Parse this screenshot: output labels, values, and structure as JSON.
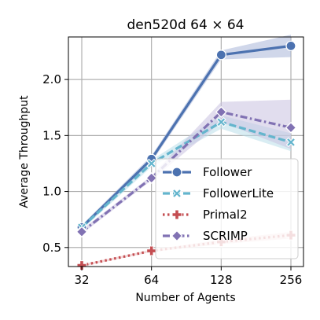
{
  "chart_data": {
    "type": "line",
    "title": "den520d 64 × 64",
    "xlabel": "Number of Agents",
    "ylabel": "Average Throughput",
    "x": [
      32,
      64,
      128,
      256
    ],
    "x_tick_labels": [
      "32",
      "64",
      "128",
      "256"
    ],
    "x_scale": "log2",
    "y_ticks": [
      0.5,
      1.0,
      1.5,
      2.0
    ],
    "y_tick_labels": [
      "0.5",
      "1.0",
      "1.5",
      "2.0"
    ],
    "ylim": [
      0.33,
      2.38
    ],
    "grid": true,
    "legend_position": "center-right",
    "series": [
      {
        "name": "Follower",
        "values": [
          0.68,
          1.29,
          2.22,
          2.3
        ],
        "band_low": [
          0.66,
          1.26,
          2.18,
          2.2
        ],
        "band_high": [
          0.7,
          1.32,
          2.26,
          2.4
        ],
        "color": "#4c72b0",
        "band_color": "#aab6d9",
        "dash": "solid",
        "marker": "circle"
      },
      {
        "name": "FollowerLite",
        "values": [
          0.68,
          1.25,
          1.62,
          1.44
        ],
        "band_low": [
          0.66,
          1.22,
          1.56,
          1.36
        ],
        "band_high": [
          0.7,
          1.28,
          1.68,
          1.52
        ],
        "color": "#64b5cd",
        "band_color": "#b9dfe9",
        "dash": "dashed",
        "marker": "x"
      },
      {
        "name": "Primal2",
        "values": [
          0.34,
          0.47,
          0.55,
          0.61
        ],
        "band_low": [
          0.33,
          0.46,
          0.53,
          0.58
        ],
        "band_high": [
          0.35,
          0.48,
          0.57,
          0.64
        ],
        "color": "#c44e52",
        "band_color": "#eab8b9",
        "dash": "dotted",
        "marker": "plus"
      },
      {
        "name": "SCRIMP",
        "values": [
          0.64,
          1.12,
          1.71,
          1.57
        ],
        "band_low": [
          0.62,
          1.1,
          1.62,
          1.38
        ],
        "band_high": [
          0.66,
          1.14,
          1.8,
          1.82
        ],
        "color": "#8172b3",
        "band_color": "#c8c1e0",
        "dash": "dashdot",
        "marker": "diamond"
      }
    ]
  }
}
